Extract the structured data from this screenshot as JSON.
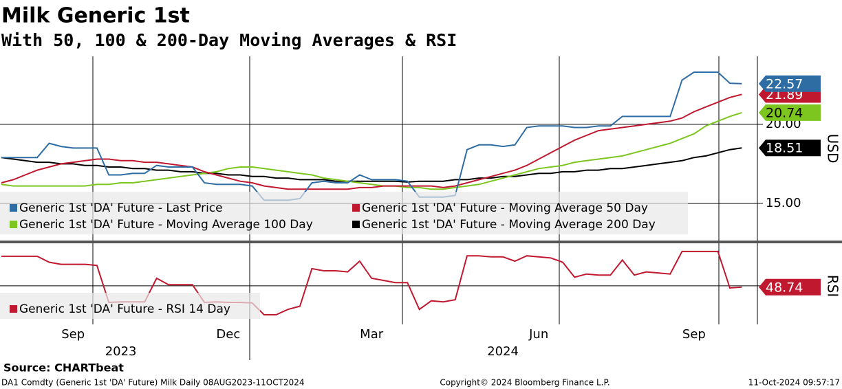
{
  "chart_data": [
    {
      "type": "line",
      "title": "Milk Generic 1st",
      "subtitle": "With 50, 100 & 200-Day Moving Averages & RSI",
      "y_label": "USD",
      "ylim": [
        12.65,
        24.3
      ],
      "yticks": [
        {
          "value": 15,
          "label": "15.00"
        },
        {
          "value": 20,
          "label": "20.00"
        }
      ],
      "grid": true,
      "series": [
        {
          "name": "Generic 1st 'DA' Future - Last Price",
          "color": "#2e6da4",
          "values": [
            17.9,
            17.9,
            17.9,
            17.9,
            18.8,
            18.6,
            18.5,
            18.5,
            18.5,
            16.8,
            16.8,
            16.9,
            16.9,
            17.4,
            17.3,
            17.3,
            17.3,
            16.3,
            16.2,
            16.2,
            16.2,
            16.1,
            15.2,
            15.2,
            15.2,
            15.3,
            16.3,
            16.4,
            16.3,
            16.3,
            16.8,
            16.5,
            16.5,
            16.5,
            16.4,
            15.4,
            15.4,
            15.4,
            15.5,
            18.4,
            18.7,
            18.7,
            18.6,
            18.7,
            19.8,
            19.9,
            19.9,
            19.9,
            19.8,
            19.8,
            19.9,
            19.9,
            20.5,
            20.5,
            20.5,
            20.5,
            20.5,
            22.8,
            23.3,
            23.3,
            23.3,
            22.6,
            22.57
          ]
        },
        {
          "name": "Generic 1st 'DA' Future - Moving Average 50 Day",
          "color": "#c0182f",
          "values": [
            16.3,
            16.5,
            16.8,
            17.1,
            17.3,
            17.5,
            17.6,
            17.7,
            17.8,
            17.8,
            17.7,
            17.7,
            17.6,
            17.6,
            17.5,
            17.4,
            17.3,
            17.0,
            16.8,
            16.6,
            16.4,
            16.3,
            16.1,
            16.0,
            15.9,
            15.9,
            15.9,
            15.9,
            15.9,
            15.9,
            16.0,
            16.0,
            16.1,
            16.1,
            16.1,
            16.1,
            16.1,
            16.0,
            16.1,
            16.3,
            16.5,
            16.7,
            16.9,
            17.1,
            17.4,
            17.8,
            18.2,
            18.6,
            19.0,
            19.3,
            19.6,
            19.7,
            19.8,
            19.9,
            20.0,
            20.1,
            20.2,
            20.4,
            20.8,
            21.1,
            21.4,
            21.7,
            21.89
          ]
        },
        {
          "name": "Generic 1st 'DA' Future - Moving Average 100 Day",
          "color": "#7dc620",
          "values": [
            16.2,
            16.1,
            16.1,
            16.1,
            16.1,
            16.1,
            16.1,
            16.1,
            16.2,
            16.2,
            16.3,
            16.3,
            16.4,
            16.5,
            16.6,
            16.7,
            16.8,
            16.9,
            17.0,
            17.2,
            17.3,
            17.3,
            17.2,
            17.1,
            17.0,
            16.9,
            16.8,
            16.6,
            16.5,
            16.4,
            16.3,
            16.2,
            16.1,
            16.1,
            16.0,
            16.0,
            15.9,
            15.9,
            16.0,
            16.1,
            16.2,
            16.4,
            16.6,
            16.8,
            17.0,
            17.2,
            17.3,
            17.4,
            17.6,
            17.7,
            17.8,
            17.9,
            18.0,
            18.2,
            18.4,
            18.6,
            18.8,
            19.1,
            19.4,
            19.9,
            20.2,
            20.5,
            20.74
          ]
        },
        {
          "name": "Generic 1st 'DA' Future - Moving Average 200 Day",
          "color": "#000000",
          "values": [
            17.9,
            17.8,
            17.7,
            17.6,
            17.6,
            17.5,
            17.5,
            17.4,
            17.4,
            17.3,
            17.3,
            17.2,
            17.2,
            17.1,
            17.1,
            17.0,
            17.0,
            16.9,
            16.9,
            16.8,
            16.8,
            16.7,
            16.7,
            16.6,
            16.6,
            16.5,
            16.5,
            16.5,
            16.4,
            16.4,
            16.4,
            16.4,
            16.4,
            16.4,
            16.35,
            16.4,
            16.4,
            16.4,
            16.5,
            16.5,
            16.6,
            16.6,
            16.7,
            16.7,
            16.8,
            16.9,
            16.9,
            17.0,
            17.0,
            17.1,
            17.1,
            17.2,
            17.2,
            17.3,
            17.4,
            17.5,
            17.6,
            17.7,
            17.9,
            18.0,
            18.2,
            18.4,
            18.51
          ]
        }
      ]
    },
    {
      "type": "line",
      "y_label": "RSI",
      "ylim": [
        14,
        89
      ],
      "reference_line": 50,
      "categories": [
        null,
        null,
        null,
        null,
        null,
        null,
        "Sep",
        null,
        null,
        null,
        null,
        null,
        null,
        null,
        null,
        null,
        null,
        null,
        null,
        "Dec",
        null,
        null,
        null,
        null,
        null,
        null,
        null,
        null,
        null,
        null,
        null,
        "Mar",
        null,
        null,
        null,
        null,
        null,
        null,
        null,
        null,
        null,
        null,
        null,
        null,
        null,
        "Jun",
        null,
        null,
        null,
        null,
        null,
        null,
        null,
        null,
        null,
        null,
        null,
        null,
        "Sep",
        null,
        null,
        null,
        null
      ],
      "year_labels": [
        null,
        null,
        null,
        null,
        null,
        null,
        null,
        null,
        null,
        null,
        "2023",
        null,
        null,
        null,
        null,
        null,
        null,
        null,
        null,
        null,
        null,
        null,
        null,
        null,
        null,
        null,
        null,
        null,
        null,
        null,
        null,
        null,
        null,
        null,
        null,
        null,
        null,
        null,
        null,
        null,
        null,
        null,
        "2024",
        null,
        null,
        null,
        null,
        null,
        null,
        null,
        null,
        null,
        null,
        null,
        null,
        null,
        null,
        null,
        null,
        null,
        null,
        null,
        null
      ],
      "series": [
        {
          "name": "Generic 1st 'DA' Future - RSI 14 Day",
          "color": "#c0182f",
          "values": [
            77.5,
            77.5,
            77.5,
            77.5,
            72,
            70,
            70,
            70,
            69,
            34.5,
            35,
            35,
            35,
            57,
            51,
            51,
            51,
            34.5,
            35,
            34.5,
            34.5,
            34,
            23,
            23,
            28,
            31,
            66,
            64,
            64,
            63,
            73,
            57,
            55,
            53,
            53,
            28,
            36,
            35,
            37,
            78,
            78,
            77,
            77,
            73,
            78,
            77,
            76,
            72,
            58,
            61,
            60,
            60,
            74,
            60,
            63,
            62,
            61,
            82,
            82,
            82,
            82,
            48,
            48.74
          ]
        }
      ]
    }
  ],
  "footer": {
    "source": "Source: CHARTbeat",
    "ticker": "DA1 Comdty (Generic 1st 'DA' Future) Milk  Daily 08AUG2023-11OCT2024",
    "copyright": "Copyright© 2024 Bloomberg Finance L.P.",
    "timestamp": "11-Oct-2024 09:57:17"
  }
}
